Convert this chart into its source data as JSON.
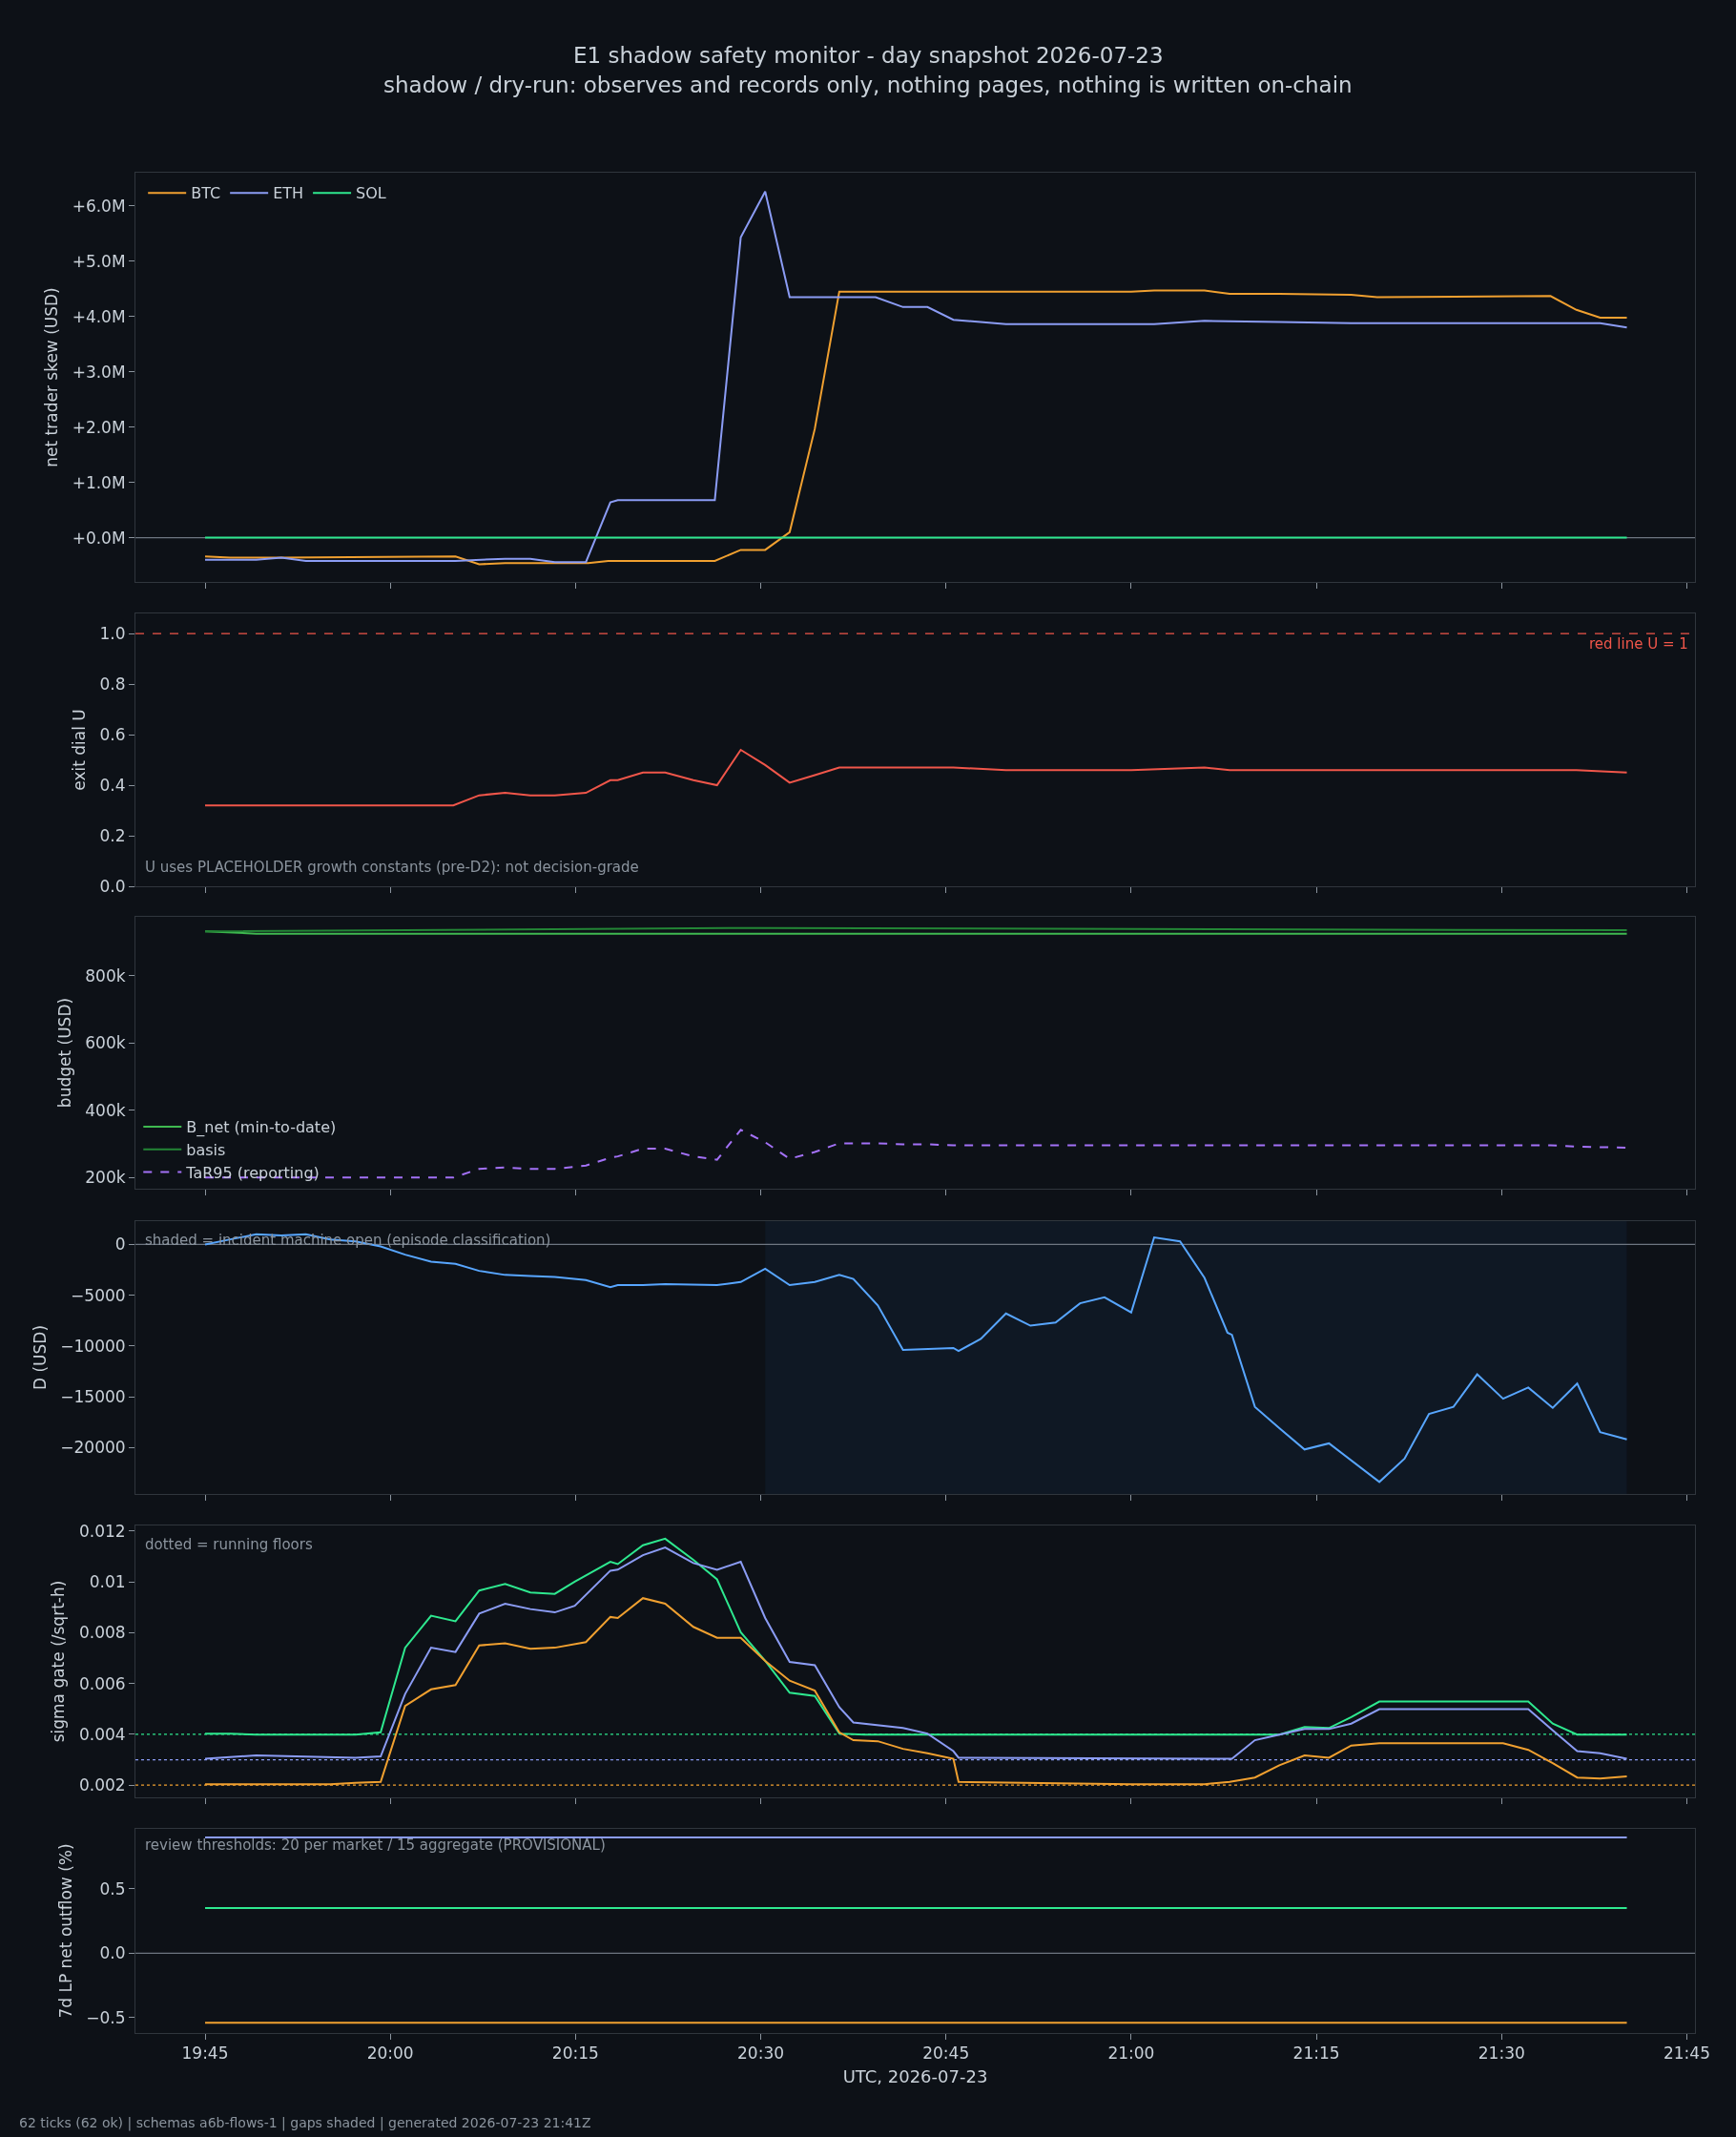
{
  "chart_data": [
    {
      "type": "line",
      "title": "E1 shadow safety monitor - day snapshot 2026-07-23",
      "subtitle": "shadow / dry-run: observes and records only, nothing pages, nothing is written on-chain",
      "ylabel": "net trader skew (USD)",
      "legend": "top left",
      "tick_labels": "y",
      "xlim": [
        19.656,
        21.761
      ],
      "xticks": [
        {
          "value": 19.75,
          "label": null
        },
        {
          "value": 20,
          "label": null
        },
        {
          "value": 20.25,
          "label": null
        },
        {
          "value": 20.5,
          "label": null
        },
        {
          "value": 20.75,
          "label": null
        },
        {
          "value": 21,
          "label": null
        },
        {
          "value": 21.25,
          "label": null
        },
        {
          "value": 21.5,
          "label": null
        },
        {
          "value": 21.75,
          "label": null
        }
      ],
      "ylim": [
        -0.8,
        6.6
      ],
      "yticks": [
        {
          "value": 0,
          "label": "+0.0M"
        },
        {
          "value": 1,
          "label": "+1.0M"
        },
        {
          "value": 2,
          "label": "+2.0M"
        },
        {
          "value": 3,
          "label": "+3.0M"
        },
        {
          "value": 4,
          "label": "+4.0M"
        },
        {
          "value": 5,
          "label": "+5.0M"
        },
        {
          "value": 6,
          "label": "+6.0M"
        }
      ],
      "ref_lines": [
        {
          "axis": "y",
          "value": 0,
          "color": "#6e7681"
        }
      ],
      "series": [
        {
          "name": "BTC",
          "color": "#f0a030",
          "x": [
            19.75,
            19.784,
            19.853,
            20.088,
            20.12,
            20.155,
            20.267,
            20.294,
            20.341,
            20.438,
            20.473,
            20.506,
            20.539,
            20.573,
            20.606,
            21.0,
            21.031,
            21.099,
            21.133,
            21.2,
            21.297,
            21.332,
            21.566,
            21.601,
            21.633,
            21.669
          ],
          "values": [
            -0.34,
            -0.36,
            -0.36,
            -0.34,
            -0.48,
            -0.46,
            -0.46,
            -0.42,
            -0.42,
            -0.42,
            -0.22,
            -0.22,
            0.1,
            1.97,
            4.45,
            4.45,
            4.47,
            4.47,
            4.41,
            4.41,
            4.39,
            4.35,
            4.37,
            4.12,
            3.98,
            3.98
          ]
        },
        {
          "name": "ETH",
          "color": "#8b9cf4",
          "x": [
            19.75,
            19.819,
            19.853,
            19.886,
            20.088,
            20.155,
            20.189,
            20.222,
            20.264,
            20.297,
            20.307,
            20.438,
            20.473,
            20.506,
            20.539,
            20.655,
            20.692,
            20.725,
            20.76,
            20.831,
            21.031,
            21.099,
            21.2,
            21.297,
            21.633,
            21.669
          ],
          "values": [
            -0.4,
            -0.4,
            -0.36,
            -0.42,
            -0.42,
            -0.38,
            -0.38,
            -0.44,
            -0.44,
            0.64,
            0.68,
            0.68,
            5.43,
            6.26,
            4.35,
            4.35,
            4.17,
            4.17,
            3.94,
            3.86,
            3.86,
            3.92,
            3.9,
            3.88,
            3.88,
            3.8
          ]
        },
        {
          "name": "SOL",
          "color": "#2ee88f",
          "x": [
            19.75,
            21.669
          ],
          "values": [
            0,
            0
          ]
        }
      ]
    },
    {
      "type": "line",
      "ylabel": "exit dial U",
      "tick_labels": "y",
      "xlim": [
        19.656,
        21.761
      ],
      "xticks": [
        {
          "value": 19.75,
          "label": null
        },
        {
          "value": 20,
          "label": null
        },
        {
          "value": 20.25,
          "label": null
        },
        {
          "value": 20.5,
          "label": null
        },
        {
          "value": 20.75,
          "label": null
        },
        {
          "value": 21,
          "label": null
        },
        {
          "value": 21.25,
          "label": null
        },
        {
          "value": 21.5,
          "label": null
        },
        {
          "value": 21.75,
          "label": null
        }
      ],
      "ylim": [
        0,
        1.08
      ],
      "yticks": [
        {
          "value": 0,
          "label": "0.0"
        },
        {
          "value": 0.2,
          "label": "0.2"
        },
        {
          "value": 0.4,
          "label": "0.4"
        },
        {
          "value": 0.6,
          "label": "0.6"
        },
        {
          "value": 0.8,
          "label": "0.8"
        },
        {
          "value": 1,
          "label": "1.0"
        }
      ],
      "ref_lines": [
        {
          "axis": "y",
          "value": 1,
          "label": "red line U = 1",
          "color": "#f0564a",
          "line_style": "dashed"
        }
      ],
      "annotations": [
        "U uses PLACEHOLDER growth constants (pre-D2): not decision-grade"
      ],
      "series": [
        {
          "color": "#f0564a",
          "x": [
            19.75,
            19.819,
            19.853,
            19.886,
            20.085,
            20.12,
            20.155,
            20.189,
            20.222,
            20.264,
            20.297,
            20.307,
            20.341,
            20.371,
            20.409,
            20.441,
            20.473,
            20.506,
            20.539,
            20.573,
            20.606,
            20.655,
            20.692,
            20.725,
            20.76,
            20.831,
            21.0,
            21.099,
            21.133,
            21.566,
            21.601,
            21.669
          ],
          "values": [
            0.32,
            0.32,
            0.32,
            0.32,
            0.32,
            0.36,
            0.37,
            0.36,
            0.36,
            0.37,
            0.42,
            0.42,
            0.45,
            0.45,
            0.42,
            0.4,
            0.54,
            0.48,
            0.41,
            0.44,
            0.47,
            0.47,
            0.47,
            0.47,
            0.47,
            0.46,
            0.46,
            0.47,
            0.46,
            0.46,
            0.46,
            0.45
          ]
        }
      ]
    },
    {
      "type": "line",
      "ylabel": "budget (USD)",
      "legend": "bottom left",
      "tick_labels": "y",
      "xlim": [
        19.656,
        21.761
      ],
      "xticks": [
        {
          "value": 19.75,
          "label": null
        },
        {
          "value": 20,
          "label": null
        },
        {
          "value": 20.25,
          "label": null
        },
        {
          "value": 20.5,
          "label": null
        },
        {
          "value": 20.75,
          "label": null
        },
        {
          "value": 21,
          "label": null
        },
        {
          "value": 21.25,
          "label": null
        },
        {
          "value": 21.5,
          "label": null
        },
        {
          "value": 21.75,
          "label": null
        }
      ],
      "ylim": [
        167,
        975
      ],
      "yticks": [
        {
          "value": 200,
          "label": "200k"
        },
        {
          "value": 400,
          "label": "400k"
        },
        {
          "value": 600,
          "label": "600k"
        },
        {
          "value": 800,
          "label": "800k"
        }
      ],
      "series": [
        {
          "name": "B_net (min-to-date)",
          "color": "#3fb950",
          "x": [
            19.75,
            19.819,
            21.669
          ],
          "values": [
            932,
            925,
            925
          ]
        },
        {
          "name": "basis",
          "color": "#238636",
          "x": [
            19.75,
            20.5,
            21.12,
            21.669
          ],
          "values": [
            932,
            942,
            938,
            935
          ]
        },
        {
          "name": "TaR95 (reporting)",
          "color": "#a371f7",
          "line_style": "dashed",
          "x": [
            19.75,
            20.085,
            20.12,
            20.155,
            20.189,
            20.222,
            20.264,
            20.297,
            20.307,
            20.341,
            20.371,
            20.409,
            20.441,
            20.473,
            20.506,
            20.539,
            20.573,
            20.606,
            20.655,
            20.692,
            20.725,
            20.76,
            21.0,
            21.099,
            21.566,
            21.601,
            21.669
          ],
          "values": [
            200,
            200,
            226,
            230,
            226,
            226,
            236,
            259,
            263,
            286,
            286,
            263,
            253,
            342,
            305,
            256,
            276,
            302,
            302,
            299,
            299,
            296,
            296,
            296,
            296,
            292,
            289
          ]
        }
      ]
    },
    {
      "type": "line",
      "ylabel": "D (USD)",
      "tick_labels": "y",
      "xlim": [
        19.656,
        21.761
      ],
      "xticks": [
        {
          "value": 19.75,
          "label": null
        },
        {
          "value": 20,
          "label": null
        },
        {
          "value": 20.25,
          "label": null
        },
        {
          "value": 20.5,
          "label": null
        },
        {
          "value": 20.75,
          "label": null
        },
        {
          "value": 21,
          "label": null
        },
        {
          "value": 21.25,
          "label": null
        },
        {
          "value": 21.5,
          "label": null
        },
        {
          "value": 21.75,
          "label": null
        }
      ],
      "ylim": [
        -24590,
        2300
      ],
      "yticks": [
        {
          "value": -20000,
          "label": "−20000"
        },
        {
          "value": -15000,
          "label": "−15000"
        },
        {
          "value": -10000,
          "label": "−10000"
        },
        {
          "value": -5000,
          "label": "−5000"
        },
        0
      ],
      "ref_lines": [
        {
          "axis": "y",
          "value": 0,
          "color": "#6e7681"
        }
      ],
      "bands": [
        {
          "axis": "x",
          "from": 20.506,
          "to": 21.669,
          "color": "#0f1824"
        }
      ],
      "annotations": [
        "shaded = incident machine open (episode classification)"
      ],
      "series": [
        {
          "color": "#58a6ff",
          "x": [
            19.75,
            19.784,
            19.819,
            19.853,
            19.886,
            19.919,
            19.953,
            19.987,
            20.02,
            20.055,
            20.088,
            20.12,
            20.155,
            20.189,
            20.222,
            20.264,
            20.297,
            20.307,
            20.341,
            20.371,
            20.441,
            20.473,
            20.506,
            20.539,
            20.573,
            20.606,
            20.625,
            20.658,
            20.692,
            20.76,
            20.767,
            20.797,
            20.831,
            20.864,
            20.898,
            20.931,
            20.964,
            21.0,
            21.031,
            21.066,
            21.099,
            21.13,
            21.136,
            21.167,
            21.2,
            21.234,
            21.267,
            21.335,
            21.369,
            21.402,
            21.435,
            21.467,
            21.502,
            21.536,
            21.569,
            21.602,
            21.633,
            21.669
          ],
          "values": [
            0,
            500,
            1000,
            900,
            1000,
            500,
            300,
            -200,
            -1000,
            -1700,
            -1900,
            -2600,
            -3000,
            -3100,
            -3200,
            -3500,
            -4200,
            -4000,
            -4000,
            -3900,
            -4000,
            -3700,
            -2400,
            -4000,
            -3700,
            -3000,
            -3400,
            -6000,
            -10400,
            -10200,
            -10500,
            -9300,
            -6800,
            -8000,
            -7700,
            -5800,
            -5200,
            -6700,
            700,
            300,
            -3300,
            -8700,
            -8900,
            -16000,
            -18100,
            -20200,
            -19600,
            -23400,
            -21100,
            -16700,
            -16000,
            -12800,
            -15200,
            -14100,
            -16100,
            -13700,
            -18500,
            -19200
          ]
        }
      ]
    },
    {
      "type": "line",
      "ylabel": "sigma gate (/sqrt-h)",
      "tick_labels": "y",
      "xlim": [
        19.656,
        21.761
      ],
      "xticks": [
        {
          "value": 19.75,
          "label": null
        },
        {
          "value": 20,
          "label": null
        },
        {
          "value": 20.25,
          "label": null
        },
        {
          "value": 20.5,
          "label": null
        },
        {
          "value": 20.75,
          "label": null
        },
        {
          "value": 21,
          "label": null
        },
        {
          "value": 21.25,
          "label": null
        },
        {
          "value": 21.5,
          "label": null
        },
        {
          "value": 21.75,
          "label": null
        }
      ],
      "ylim": [
        0.00152,
        0.01222
      ],
      "yticks": [
        0.002,
        0.004,
        0.006,
        0.008,
        0.01,
        0.012
      ],
      "ref_lines": [
        {
          "axis": "y",
          "value": 0.004,
          "color": "#2ee88f",
          "line_style": "dotted"
        },
        {
          "axis": "y",
          "value": 0.003,
          "color": "#8b9cf4",
          "line_style": "dotted"
        },
        {
          "axis": "y",
          "value": 0.002,
          "color": "#f0a030",
          "line_style": "dotted"
        }
      ],
      "annotations": [
        "dotted = running floors"
      ],
      "series": [
        {
          "color": "#2ee88f",
          "x": [
            19.75,
            19.784,
            19.819,
            19.953,
            19.987,
            20.02,
            20.055,
            20.088,
            20.12,
            20.155,
            20.189,
            20.222,
            20.249,
            20.297,
            20.307,
            20.341,
            20.371,
            20.409,
            20.441,
            20.473,
            20.506,
            20.539,
            20.573,
            20.606,
            20.64,
            21.2,
            21.234,
            21.267,
            21.297,
            21.335,
            21.536,
            21.569,
            21.602,
            21.669
          ],
          "values": [
            0.00403,
            0.00403,
            0.00399,
            0.00399,
            0.00408,
            0.00741,
            0.00867,
            0.00845,
            0.00966,
            0.00992,
            0.00958,
            0.00953,
            0.01001,
            0.01079,
            0.0107,
            0.01144,
            0.0117,
            0.01087,
            0.0101,
            0.00802,
            0.00689,
            0.00564,
            0.00551,
            0.00403,
            0.00399,
            0.00399,
            0.00429,
            0.00425,
            0.00468,
            0.00529,
            0.00529,
            0.00442,
            0.00399,
            0.00399
          ]
        },
        {
          "color": "#8b9cf4",
          "x": [
            19.75,
            19.819,
            19.953,
            19.987,
            20.02,
            20.055,
            20.088,
            20.12,
            20.155,
            20.189,
            20.222,
            20.249,
            20.297,
            20.307,
            20.341,
            20.371,
            20.409,
            20.441,
            20.473,
            20.506,
            20.539,
            20.573,
            20.606,
            20.625,
            20.692,
            20.725,
            20.76,
            20.767,
            21.136,
            21.167,
            21.2,
            21.234,
            21.267,
            21.297,
            21.335,
            21.536,
            21.569,
            21.602,
            21.633,
            21.669
          ],
          "values": [
            0.00304,
            0.00317,
            0.00308,
            0.00313,
            0.00559,
            0.00741,
            0.00724,
            0.00875,
            0.00914,
            0.00893,
            0.0088,
            0.00906,
            0.01044,
            0.01048,
            0.01105,
            0.01135,
            0.01074,
            0.01048,
            0.01079,
            0.00858,
            0.00685,
            0.00672,
            0.00507,
            0.00447,
            0.00425,
            0.00403,
            0.00334,
            0.00308,
            0.00304,
            0.00377,
            0.00399,
            0.00421,
            0.00421,
            0.00442,
            0.00499,
            0.00499,
            0.00416,
            0.00334,
            0.00326,
            0.00304
          ]
        },
        {
          "color": "#f0a030",
          "x": [
            19.75,
            19.919,
            19.953,
            19.987,
            20.02,
            20.055,
            20.088,
            20.12,
            20.155,
            20.189,
            20.222,
            20.264,
            20.297,
            20.307,
            20.341,
            20.371,
            20.409,
            20.441,
            20.473,
            20.506,
            20.539,
            20.573,
            20.606,
            20.625,
            20.658,
            20.692,
            20.725,
            20.76,
            20.767,
            21.0,
            21.099,
            21.133,
            21.167,
            21.2,
            21.234,
            21.267,
            21.297,
            21.335,
            21.502,
            21.536,
            21.569,
            21.602,
            21.633,
            21.669
          ],
          "values": [
            0.00204,
            0.00204,
            0.00209,
            0.00213,
            0.00512,
            0.00577,
            0.00594,
            0.0075,
            0.00758,
            0.00737,
            0.00741,
            0.00763,
            0.00862,
            0.00858,
            0.00936,
            0.00914,
            0.00823,
            0.0078,
            0.0078,
            0.00689,
            0.00611,
            0.00572,
            0.00408,
            0.00377,
            0.00373,
            0.00343,
            0.00326,
            0.00304,
            0.00213,
            0.00204,
            0.00204,
            0.00213,
            0.0023,
            0.00278,
            0.00317,
            0.00308,
            0.00356,
            0.00365,
            0.00365,
            0.00339,
            0.00287,
            0.0023,
            0.00226,
            0.00235
          ]
        }
      ]
    },
    {
      "type": "line",
      "ylabel": "7d LP net outflow (%)",
      "xlabel": "UTC, 2026-07-23",
      "xlim": [
        19.656,
        21.761
      ],
      "xticks": [
        {
          "value": 19.75,
          "label": "19:45"
        },
        {
          "value": 20,
          "label": "20:00"
        },
        {
          "value": 20.25,
          "label": "20:15"
        },
        {
          "value": 20.5,
          "label": "20:30"
        },
        {
          "value": 20.75,
          "label": "20:45"
        },
        {
          "value": 21,
          "label": "21:00"
        },
        {
          "value": 21.25,
          "label": "21:15"
        },
        {
          "value": 21.5,
          "label": "21:30"
        },
        {
          "value": 21.75,
          "label": "21:45"
        }
      ],
      "ylim": [
        -0.62,
        0.966
      ],
      "yticks": [
        {
          "value": -0.5,
          "label": "−0.5"
        },
        {
          "value": 0,
          "label": "0.0"
        },
        0.5
      ],
      "ref_lines": [
        {
          "axis": "y",
          "value": 0,
          "color": "#6e7681"
        }
      ],
      "annotations": [
        "review thresholds: 20 per market / 15 aggregate (PROVISIONAL)",
        "62 ticks (62 ok) | schemas a6b-flows-1 | gaps shaded | generated 2026-07-23 21:41Z"
      ],
      "series": [
        {
          "color": "#8b9cf4",
          "x": [
            19.75,
            21.669
          ],
          "values": [
            0.9,
            0.9
          ]
        },
        {
          "color": "#2ee88f",
          "x": [
            19.75,
            21.669
          ],
          "values": [
            0.35,
            0.35
          ]
        },
        {
          "color": "#f0a030",
          "x": [
            19.75,
            21.669
          ],
          "values": [
            -0.54,
            -0.54
          ]
        }
      ]
    }
  ]
}
